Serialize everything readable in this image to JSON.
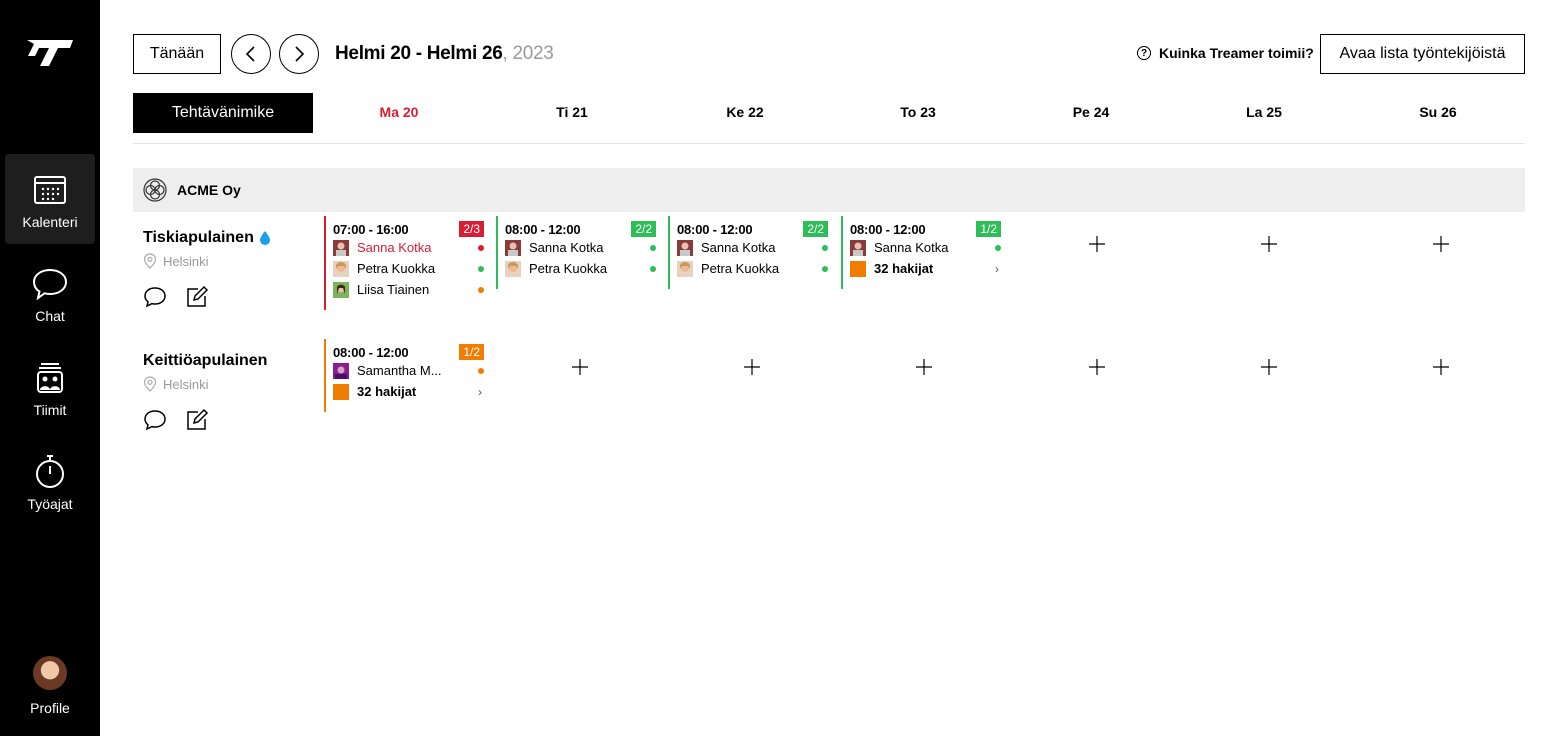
{
  "sidebar": {
    "logo": "treamer-logo",
    "items": [
      {
        "label": "Kalenteri",
        "icon": "calendar-icon",
        "active": true
      },
      {
        "label": "Chat",
        "icon": "chat-bubble-icon"
      },
      {
        "label": "Tiimit",
        "icon": "team-icon"
      },
      {
        "label": "Työajat",
        "icon": "stopwatch-icon"
      }
    ],
    "profile_label": "Profile"
  },
  "toolbar": {
    "today_label": "Tänään",
    "date_range": "Helmi 20 - Helmi 26",
    "year": ", 2023",
    "help_label": "Kuinka Treamer toimii?",
    "open_list_label": "Avaa lista työntekijöistä"
  },
  "header": {
    "task_title_label": "Tehtävänimike",
    "days": [
      {
        "label": "Ma 20",
        "today": true
      },
      {
        "label": "Ti 21"
      },
      {
        "label": "Ke 22"
      },
      {
        "label": "To 23"
      },
      {
        "label": "Pe 24"
      },
      {
        "label": "La 25"
      },
      {
        "label": "Su 26"
      }
    ]
  },
  "company": {
    "name": "ACME Oy"
  },
  "colors": {
    "accent_red": "#d81e35",
    "green": "#2ebd59",
    "orange": "#f07d00"
  },
  "tasks": [
    {
      "name": "Tiskiapulainen",
      "location": "Helsinki",
      "shifts": [
        {
          "time": "07:00 - 16:00",
          "badge": "2/3",
          "status": "red",
          "workers": [
            {
              "name": "Sanna Kotka",
              "alert": true,
              "dot": "red"
            },
            {
              "name": "Petra Kuokka",
              "dot": "green"
            },
            {
              "name": "Liisa Tiainen",
              "dot": "orange"
            }
          ]
        },
        {
          "time": "08:00 - 12:00",
          "badge": "2/2",
          "status": "green",
          "workers": [
            {
              "name": "Sanna Kotka",
              "dot": "green"
            },
            {
              "name": "Petra Kuokka",
              "dot": "green"
            }
          ]
        },
        {
          "time": "08:00 - 12:00",
          "badge": "2/2",
          "status": "green",
          "workers": [
            {
              "name": "Sanna Kotka",
              "dot": "green"
            },
            {
              "name": "Petra Kuokka",
              "dot": "green"
            }
          ]
        },
        {
          "time": "08:00 - 12:00",
          "badge": "1/2",
          "status": "green",
          "workers": [
            {
              "name": "Sanna Kotka",
              "dot": "green"
            },
            {
              "name": "32 hakijat",
              "applicants": true
            }
          ]
        }
      ]
    },
    {
      "name": "Keittiöapulainen",
      "location": "Helsinki",
      "shifts": [
        {
          "time": "08:00 - 12:00",
          "badge": "1/2",
          "status": "orange",
          "workers": [
            {
              "name": "Samantha M...",
              "dot": "orange"
            },
            {
              "name": "32 hakijat",
              "applicants": true
            }
          ]
        }
      ]
    }
  ]
}
